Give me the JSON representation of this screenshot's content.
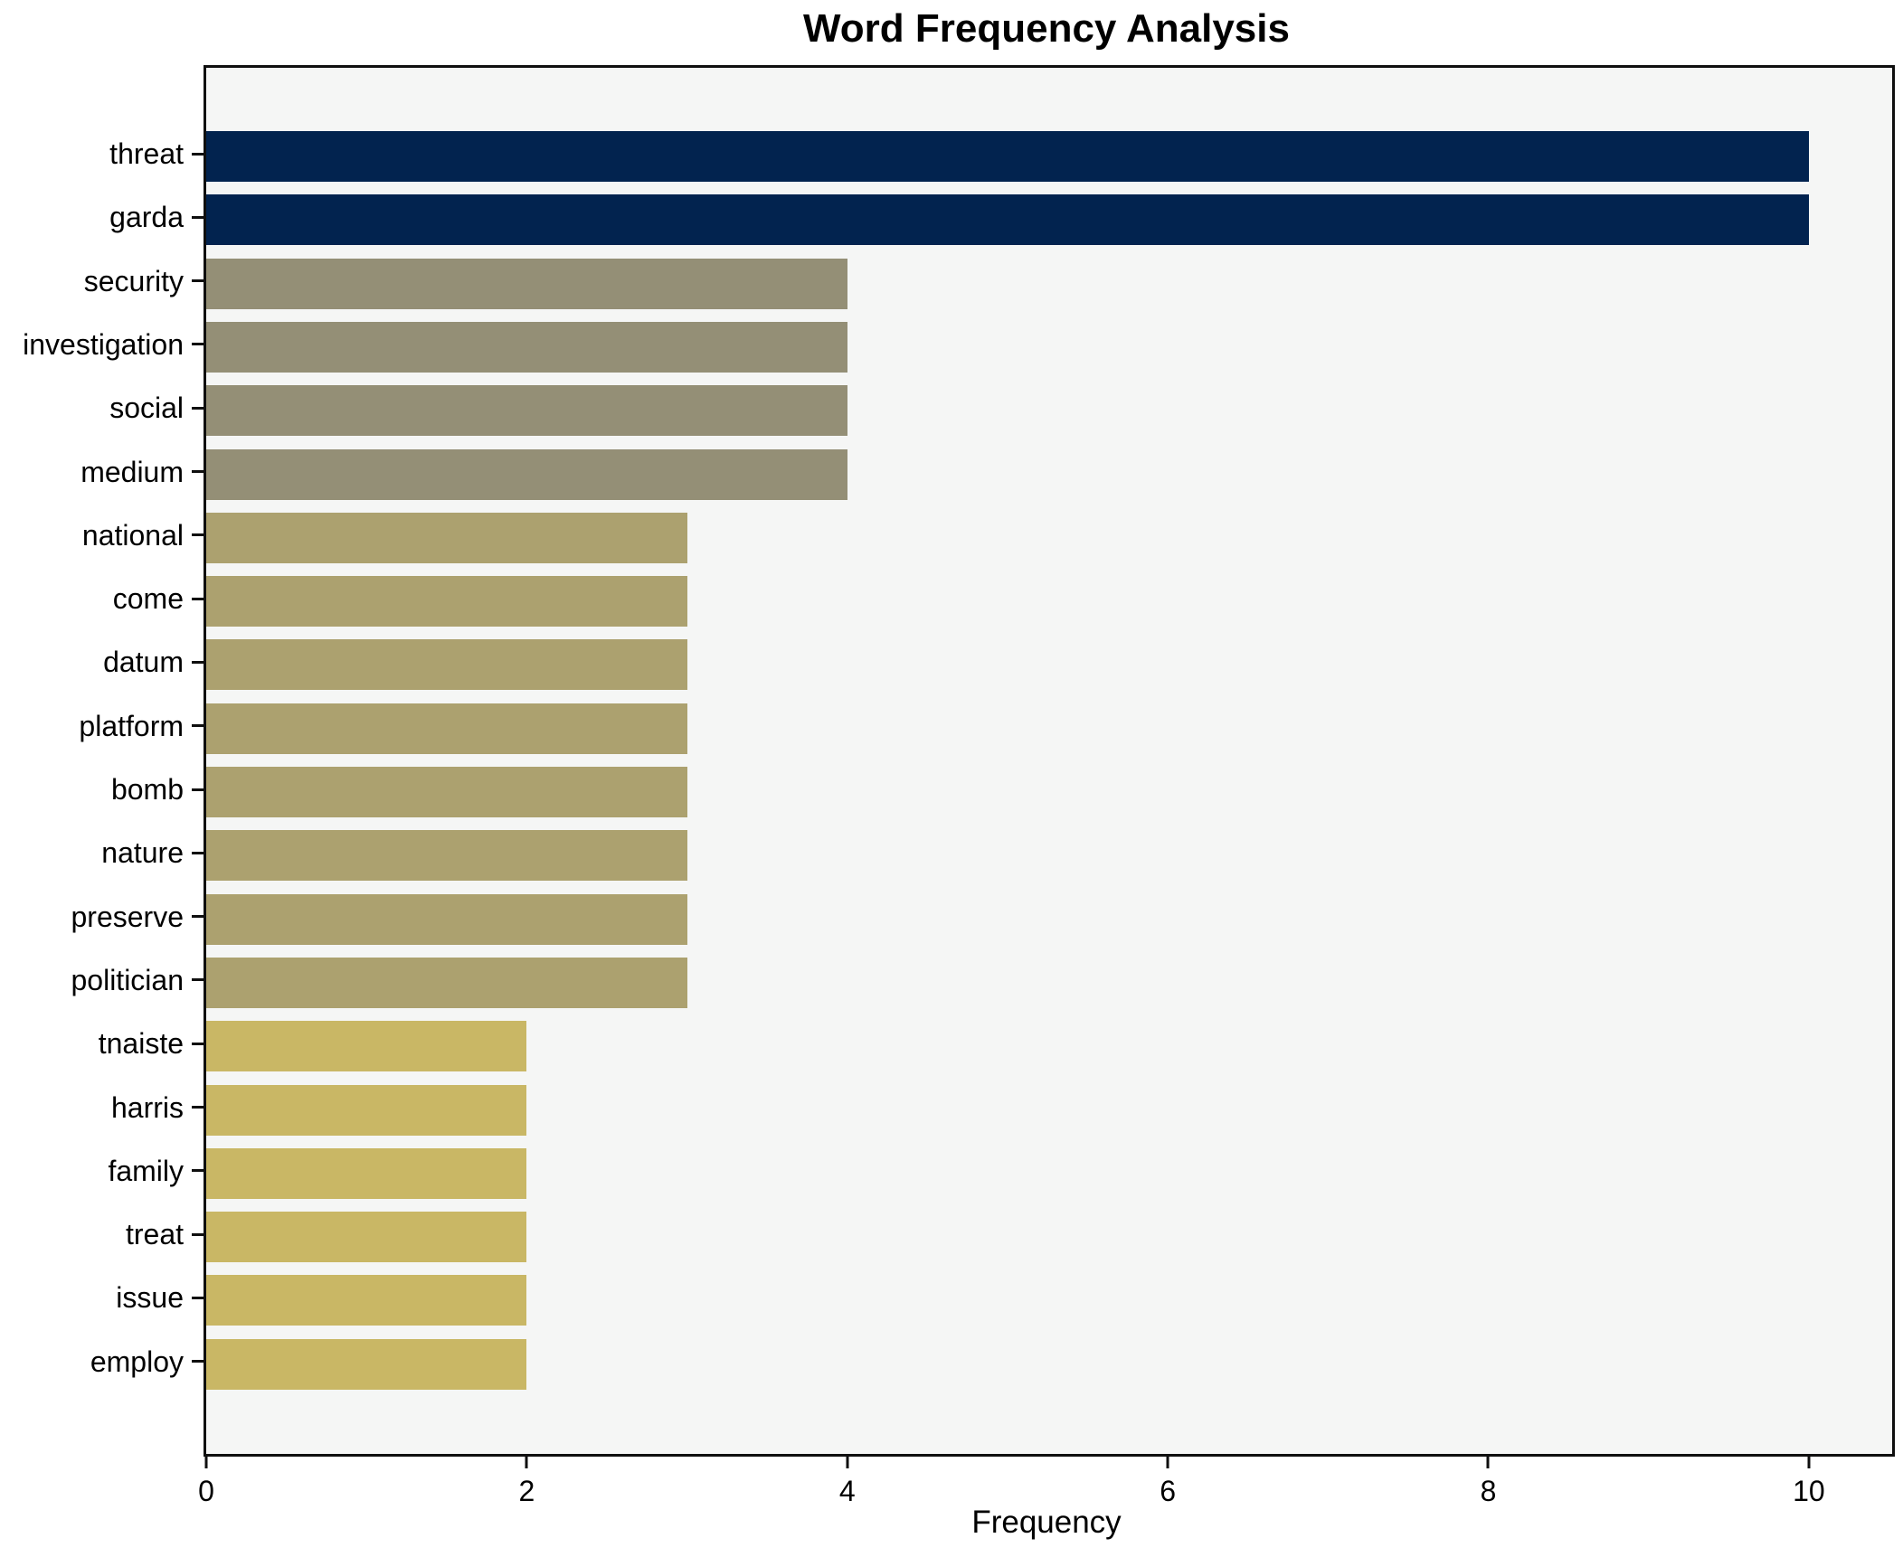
{
  "chart_data": {
    "type": "bar",
    "orientation": "horizontal",
    "title": "Word Frequency Analysis",
    "xlabel": "Frequency",
    "ylabel": "",
    "categories": [
      "threat",
      "garda",
      "security",
      "investigation",
      "social",
      "medium",
      "national",
      "come",
      "datum",
      "platform",
      "bomb",
      "nature",
      "preserve",
      "politician",
      "tnaiste",
      "harris",
      "family",
      "treat",
      "issue",
      "employ"
    ],
    "values": [
      10,
      10,
      4,
      4,
      4,
      4,
      3,
      3,
      3,
      3,
      3,
      3,
      3,
      3,
      2,
      2,
      2,
      2,
      2,
      2
    ],
    "bar_colors": [
      "#02234F",
      "#02234F",
      "#948F76",
      "#948F76",
      "#948F76",
      "#948F76",
      "#ACA16F",
      "#ACA16F",
      "#ACA16F",
      "#ACA16F",
      "#ACA16F",
      "#ACA16F",
      "#ACA16F",
      "#ACA16F",
      "#C9B765",
      "#C9B765",
      "#C9B765",
      "#C9B765",
      "#C9B765",
      "#C9B765"
    ],
    "value_color_map": {
      "10": "#02234F",
      "4": "#948F76",
      "3": "#ACA16F",
      "2": "#C9B765"
    },
    "x_ticks": [
      0,
      2,
      4,
      6,
      8,
      10
    ],
    "xlim": [
      0,
      10.52
    ],
    "grid": false,
    "legend": null,
    "plot_background": "#F5F6F5",
    "figure_background": "#FFFFFF",
    "spine_color": "#0F0F0F"
  }
}
